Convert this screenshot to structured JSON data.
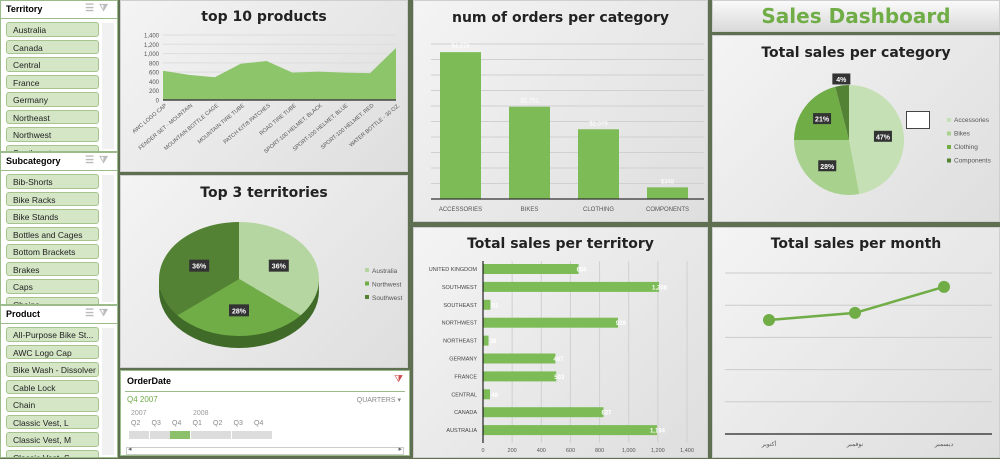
{
  "slicers": {
    "territory": {
      "title": "Territory",
      "items": [
        "Australia",
        "Canada",
        "Central",
        "France",
        "Germany",
        "Northeast",
        "Northwest",
        "Southeast"
      ]
    },
    "subcategory": {
      "title": "Subcategory",
      "items": [
        "Bib-Shorts",
        "Bike Racks",
        "Bike Stands",
        "Bottles and Cages",
        "Bottom Brackets",
        "Brakes",
        "Caps",
        "Chains"
      ]
    },
    "product": {
      "title": "Product",
      "items": [
        "All-Purpose Bike St...",
        "AWC Logo Cap",
        "Bike Wash - Dissolver",
        "Cable Lock",
        "Chain",
        "Classic Vest, L",
        "Classic Vest, M",
        "Classic Vest, S"
      ]
    }
  },
  "timeline": {
    "title": "OrderDate",
    "selection": "Q4 2007",
    "level": "QUARTERS",
    "years": [
      "2007",
      "2008"
    ],
    "quarters": [
      "Q2",
      "Q3",
      "Q4",
      "Q1",
      "Q2",
      "Q3",
      "Q4"
    ],
    "selected_index": 2
  },
  "dashboard_title": "Sales Dashboard",
  "colors": {
    "accent": "#70ad47",
    "light": "#c5e0b4",
    "mid": "#a9d18e",
    "dark": "#548235",
    "title_green": "#70ad47"
  },
  "chart_data": [
    {
      "type": "area",
      "title": "top 10 products",
      "categories": [
        "AWC LOGO CAP",
        "FENDER SET - MOUNTAIN",
        "MOUNTAIN BOTTLE CAGE",
        "MOUNTAIN TIRE TUBE",
        "PATCH KIT/8 PATCHES",
        "ROAD TIRE TUBE",
        "SPORT-100 HELMET, BLACK",
        "SPORT-100 HELMET, BLUE",
        "SPORT-100 HELMET, RED",
        "WATER BOTTLE - 30 OZ."
      ],
      "values": [
        630,
        540,
        490,
        780,
        840,
        590,
        610,
        590,
        580,
        1120
      ],
      "ylim": [
        0,
        1400
      ],
      "yticks": [
        "0",
        "200",
        "400",
        "600",
        "800",
        "1,000",
        "1,200",
        "1,400"
      ],
      "grid": true
    },
    {
      "type": "bar",
      "title": "num of orders per category",
      "categories": [
        "ACCESSORIES",
        "BIKES",
        "CLOTHING",
        "COMPONENTS"
      ],
      "values": [
        4378,
        2751,
        2079,
        348
      ],
      "labels": [
        "$4,378",
        "$2,751",
        "$2,079",
        "$348"
      ],
      "ylim": [
        0,
        4800
      ],
      "grid": true
    },
    {
      "type": "pie",
      "title": "Total sales per category",
      "categories": [
        "Accessories",
        "Bikes",
        "Clothing",
        "Components"
      ],
      "values": [
        47,
        28,
        21,
        4
      ],
      "labels": [
        "47%",
        "28%",
        "21%",
        "4%"
      ],
      "legend": "right"
    },
    {
      "type": "pie",
      "title": "Top 3 territories",
      "categories": [
        "Australia",
        "Northwest",
        "Southwest"
      ],
      "values": [
        36,
        28,
        36
      ],
      "labels": [
        "36%",
        "28%",
        "36%"
      ],
      "legend": "right",
      "style": "3d"
    },
    {
      "type": "bar",
      "orientation": "horizontal",
      "title": "Total sales per territory",
      "categories": [
        "UNITED KINGDOM",
        "SOUTHWEST",
        "SOUTHEAST",
        "NORTHWEST",
        "NORTHEAST",
        "GERMANY",
        "FRANCE",
        "CENTRAL",
        "CANADA",
        "AUSTRALIA"
      ],
      "values": [
        656,
        1208,
        51,
        926,
        38,
        497,
        503,
        48,
        827,
        1194
      ],
      "labels": [
        "656",
        "1,208",
        "51",
        "926",
        "38",
        "497",
        "503",
        "48",
        "827",
        "1,194"
      ],
      "xlim": [
        0,
        1400
      ],
      "xticks": [
        "0",
        "200",
        "400",
        "600",
        "800",
        "1,000",
        "1,200",
        "1,400"
      ],
      "grid": true
    },
    {
      "type": "line",
      "title": "Total sales per month",
      "categories": [
        "أكتوبر",
        "نوفمبر",
        "ديسمبر"
      ],
      "values": [
        3.54,
        3.76,
        4.57
      ],
      "ylim": [
        0,
        5
      ],
      "grid": true
    }
  ]
}
